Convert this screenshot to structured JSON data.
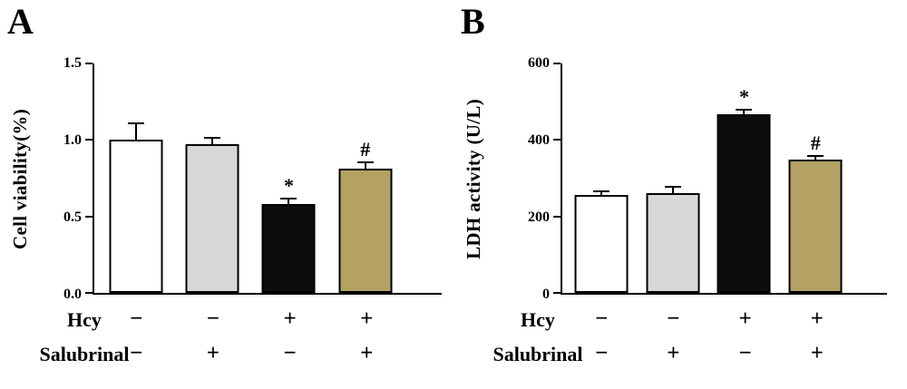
{
  "panels": [
    {
      "label": "A",
      "rows": [
        {
          "label": "Hcy",
          "values": [
            "−",
            "−",
            "+",
            "+"
          ]
        },
        {
          "label": "Salubrinal",
          "values": [
            "−",
            "+",
            "−",
            "+"
          ]
        }
      ]
    },
    {
      "label": "B",
      "rows": [
        {
          "label": "Hcy",
          "values": [
            "−",
            "−",
            "+",
            "+"
          ]
        },
        {
          "label": "Salubrinal",
          "values": [
            "−",
            "+",
            "−",
            "+"
          ]
        }
      ]
    }
  ],
  "chart_data": [
    {
      "type": "bar",
      "panel": "A",
      "title": "",
      "xlabel": "",
      "ylabel": "Cell viability(%)",
      "ylim": [
        0,
        1.5
      ],
      "yticks": [
        "0.0",
        "0.5",
        "1.0",
        "1.5"
      ],
      "ytick_values": [
        0,
        0.5,
        1.0,
        1.5
      ],
      "grid": false,
      "legend": "none",
      "categories": [
        "Hcy− / Salubrinal−",
        "Hcy− / Salubrinal+",
        "Hcy+ / Salubrinal−",
        "Hcy+ / Salubrinal+"
      ],
      "values": [
        1.0,
        0.97,
        0.58,
        0.81
      ],
      "errors": [
        0.1,
        0.04,
        0.03,
        0.04
      ],
      "annotations": [
        "",
        "",
        "*",
        "#"
      ],
      "bar_colors": [
        "#ffffff",
        "#d8d8d8",
        "#0d0d0d",
        "#b3a264"
      ]
    },
    {
      "type": "bar",
      "panel": "B",
      "title": "",
      "xlabel": "",
      "ylabel": "LDH activity (U/L)",
      "ylim": [
        0,
        600
      ],
      "yticks": [
        "0",
        "200",
        "400",
        "600"
      ],
      "ytick_values": [
        0,
        200,
        400,
        600
      ],
      "grid": false,
      "legend": "none",
      "categories": [
        "Hcy− / Salubrinal−",
        "Hcy− / Salubrinal+",
        "Hcy+ / Salubrinal−",
        "Hcy+ / Salubrinal+"
      ],
      "values": [
        256,
        260,
        468,
        348
      ],
      "errors": [
        8,
        14,
        8,
        8
      ],
      "annotations": [
        "",
        "",
        "*",
        "#"
      ],
      "bar_colors": [
        "#ffffff",
        "#d8d8d8",
        "#0d0d0d",
        "#b3a264"
      ]
    }
  ]
}
